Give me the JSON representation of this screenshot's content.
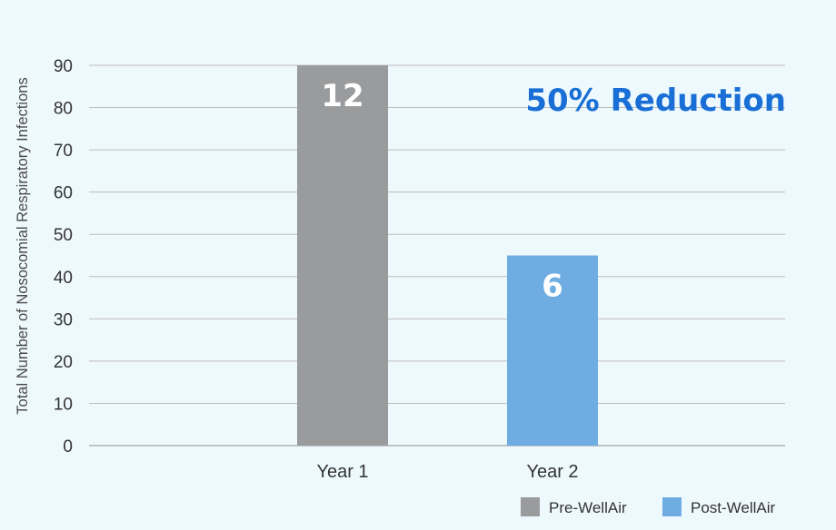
{
  "chart_data": {
    "type": "bar",
    "categories": [
      "Year 1",
      "Year 2"
    ],
    "values": [
      90,
      45
    ],
    "bar_labels": [
      "12",
      "6"
    ],
    "colors": [
      "#9a9b9d",
      "#6eace2"
    ],
    "ylabel": "Total Number of Nosocomial Respiratory Infections",
    "ylim": [
      0,
      90
    ],
    "yticks": [
      0,
      10,
      20,
      30,
      40,
      50,
      60,
      70,
      80,
      90
    ],
    "grid": true,
    "annotation": {
      "text": "50% Reduction",
      "color": "#1a6fd6",
      "placement": "top-right"
    },
    "legend": {
      "placement": "bottom-right",
      "items": [
        {
          "label": "Pre-WellAir",
          "color": "#9a9b9d"
        },
        {
          "label": "Post-WellAir",
          "color": "#6eace2"
        }
      ]
    }
  }
}
